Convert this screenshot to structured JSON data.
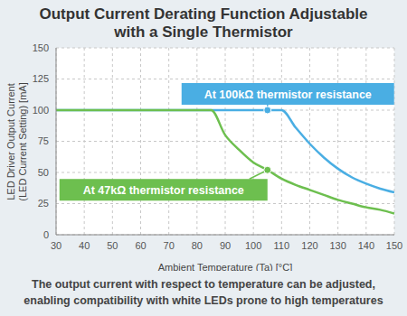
{
  "chart_data": {
    "type": "line",
    "title": "Output Current Derating Function Adjustable\nwith a Single Thermistor",
    "caption": "The output current with respect to temperature can be adjusted,\nenabling compatibility with white LEDs prone to high temperatures",
    "xlabel": "Ambient Temperature (Ta) [°C]",
    "ylabel": "LED Driver Output Current\n(LED Current Setting) [mA]",
    "xlim": [
      30,
      150
    ],
    "xticks": [
      30,
      40,
      50,
      60,
      70,
      80,
      90,
      100,
      110,
      120,
      130,
      140,
      150
    ],
    "ylim": [
      0,
      150
    ],
    "yticks": [
      0,
      25,
      50,
      75,
      100,
      125,
      150
    ],
    "grid": true,
    "series": [
      {
        "name": "At 100kΩ thermistor resistance",
        "color": "#4aaee3",
        "x": [
          30,
          105,
          110,
          115,
          120,
          125,
          130,
          135,
          140,
          145,
          150
        ],
        "values": [
          100,
          100,
          100,
          86,
          73,
          62,
          53,
          46,
          41,
          37,
          34
        ]
      },
      {
        "name": "At 47kΩ thermistor resistance",
        "color": "#6dbf4f",
        "x": [
          30,
          85,
          90,
          95,
          100,
          105,
          110,
          115,
          120,
          125,
          130,
          135,
          140,
          145,
          150
        ],
        "values": [
          100,
          100,
          80,
          68,
          58,
          52,
          45,
          40,
          36,
          32,
          28,
          25,
          22,
          20,
          17
        ]
      }
    ]
  }
}
